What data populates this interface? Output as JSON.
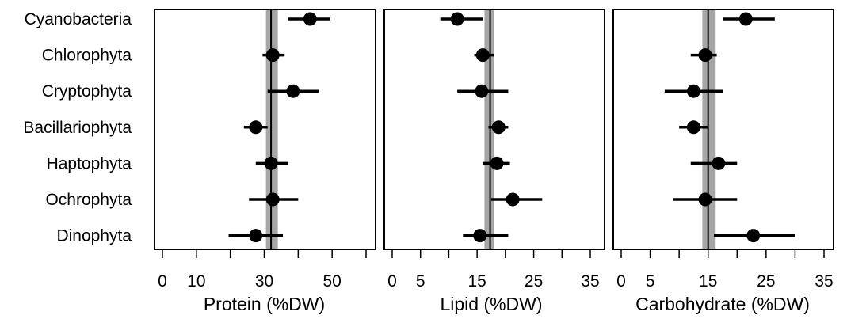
{
  "colors": {
    "point": "#000000",
    "errorbar": "#000000",
    "mean_band": "#a6a6a6",
    "mean_line": "#000000",
    "frame": "#000000",
    "background": "#ffffff"
  },
  "chart_data": [
    {
      "type": "scatter",
      "subtype": "dot-and-whisker",
      "xlabel": "Protein (%DW)",
      "xlim": [
        0,
        60
      ],
      "xticks": [
        0,
        10,
        20,
        30,
        40,
        50,
        60
      ],
      "xtick_labels": [
        "0",
        "10",
        "",
        "30",
        "",
        "50",
        ""
      ],
      "categories": [
        "Cyanobacteria",
        "Chlorophyta",
        "Cryptophyta",
        "Bacillariophyta",
        "Haptophyta",
        "Ochrophyta",
        "Dinophyta"
      ],
      "values": [
        43.5,
        32.5,
        38.5,
        27.5,
        32.0,
        32.5,
        27.5
      ],
      "ci_low": [
        37.0,
        29.5,
        31.0,
        24.0,
        27.5,
        25.5,
        19.5
      ],
      "ci_high": [
        49.5,
        36.0,
        46.0,
        31.0,
        37.0,
        40.0,
        35.5
      ],
      "overall_mean": 32.0,
      "overall_ci": [
        30.5,
        34.0
      ],
      "grid": false
    },
    {
      "type": "scatter",
      "subtype": "dot-and-whisker",
      "xlabel": "Lipid (%DW)",
      "xlim": [
        0,
        35
      ],
      "xticks": [
        0,
        5,
        10,
        15,
        20,
        25,
        30,
        35
      ],
      "xtick_labels": [
        "0",
        "5",
        "",
        "15",
        "",
        "25",
        "",
        "35"
      ],
      "categories": [
        "Cyanobacteria",
        "Chlorophyta",
        "Cryptophyta",
        "Bacillariophyta",
        "Haptophyta",
        "Ochrophyta",
        "Dinophyta"
      ],
      "values": [
        11.5,
        16.0,
        15.8,
        18.8,
        18.5,
        21.3,
        15.5
      ],
      "ci_low": [
        8.5,
        14.5,
        11.5,
        17.0,
        16.0,
        17.5,
        12.5
      ],
      "ci_high": [
        16.0,
        18.0,
        20.5,
        20.5,
        20.8,
        26.5,
        20.5
      ],
      "overall_mean": 17.3,
      "overall_ci": [
        16.3,
        18.0
      ],
      "grid": false
    },
    {
      "type": "scatter",
      "subtype": "dot-and-whisker",
      "xlabel": "Carbohydrate (%DW)",
      "xlim": [
        0,
        35
      ],
      "xticks": [
        0,
        5,
        10,
        15,
        20,
        25,
        30,
        35
      ],
      "xtick_labels": [
        "0",
        "5",
        "",
        "15",
        "",
        "25",
        "",
        "35"
      ],
      "categories": [
        "Cyanobacteria",
        "Chlorophyta",
        "Cryptophyta",
        "Bacillariophyta",
        "Haptophyta",
        "Ochrophyta",
        "Dinophyta"
      ],
      "values": [
        21.5,
        14.5,
        12.5,
        12.5,
        16.8,
        14.5,
        22.8
      ],
      "ci_low": [
        17.5,
        12.0,
        7.5,
        10.0,
        12.0,
        9.0,
        16.0
      ],
      "ci_high": [
        26.5,
        16.5,
        17.5,
        15.0,
        20.0,
        20.0,
        30.0
      ],
      "overall_mean": 15.0,
      "overall_ci": [
        14.0,
        16.3
      ],
      "grid": false
    }
  ]
}
